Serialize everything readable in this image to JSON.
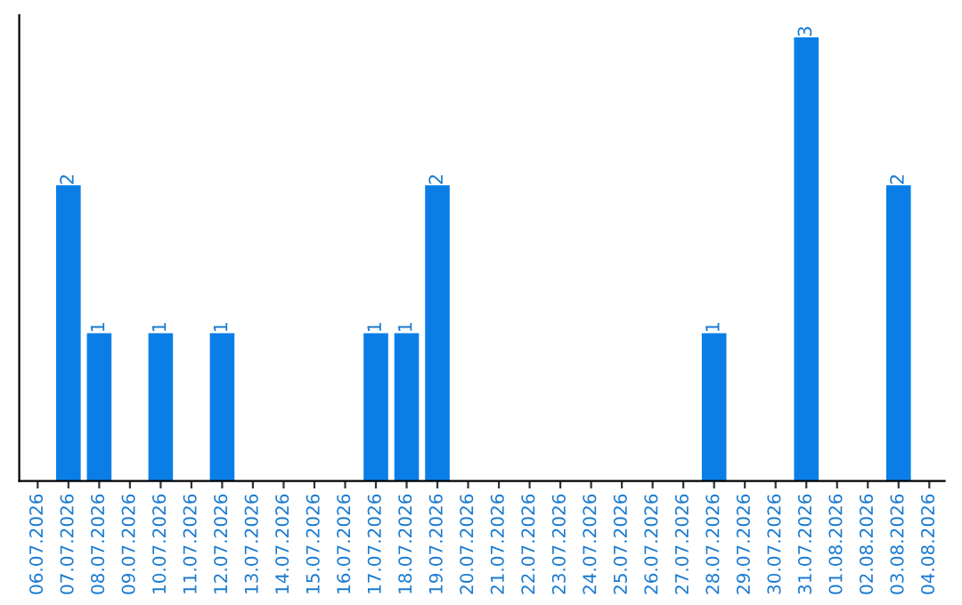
{
  "chart_data": {
    "type": "bar",
    "categories": [
      "06.07.2026",
      "07.07.2026",
      "08.07.2026",
      "09.07.2026",
      "10.07.2026",
      "11.07.2026",
      "12.07.2026",
      "13.07.2026",
      "14.07.2026",
      "15.07.2026",
      "16.07.2026",
      "17.07.2026",
      "18.07.2026",
      "19.07.2026",
      "20.07.2026",
      "21.07.2026",
      "22.07.2026",
      "23.07.2026",
      "24.07.2026",
      "25.07.2026",
      "26.07.2026",
      "27.07.2026",
      "28.07.2026",
      "29.07.2026",
      "30.07.2026",
      "31.07.2026",
      "01.08.2026",
      "02.08.2026",
      "03.08.2026",
      "04.08.2026"
    ],
    "values": [
      0,
      2,
      1,
      0,
      1,
      0,
      1,
      0,
      0,
      0,
      0,
      1,
      1,
      2,
      0,
      0,
      0,
      0,
      0,
      0,
      0,
      0,
      1,
      0,
      0,
      3,
      0,
      0,
      2,
      0
    ],
    "value_labels": [
      null,
      "2",
      "1",
      null,
      "1",
      null,
      "1",
      null,
      null,
      null,
      null,
      "1",
      "1",
      "2",
      null,
      null,
      null,
      null,
      null,
      null,
      null,
      null,
      "1",
      null,
      null,
      "3",
      null,
      null,
      "2",
      null
    ],
    "color": "#0a7ee6",
    "tick_labels": "x",
    "grid": false,
    "legend": false
  }
}
